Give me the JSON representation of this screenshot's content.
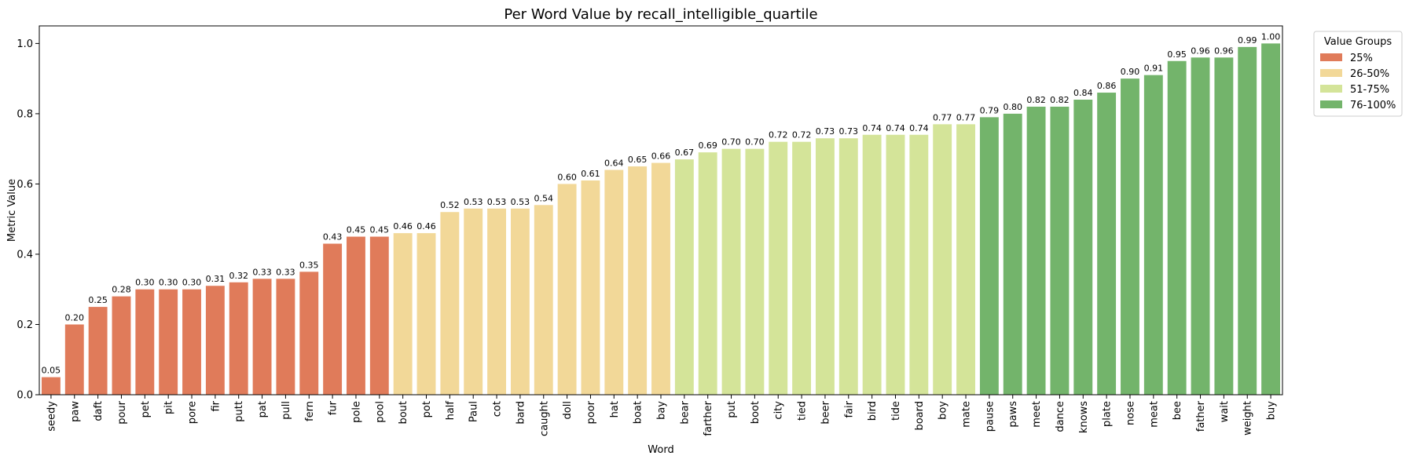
{
  "chart_data": {
    "type": "bar",
    "title": "Per Word Value by recall_intelligible_quartile",
    "xlabel": "Word",
    "ylabel": "Metric Value",
    "ylim": [
      0,
      1.05
    ],
    "yticks": [
      0.0,
      0.2,
      0.4,
      0.6,
      0.8,
      1.0
    ],
    "ytick_labels": [
      "0.0",
      "0.2",
      "0.4",
      "0.6",
      "0.8",
      "1.0"
    ],
    "grid": false,
    "legend": {
      "title": "Value Groups",
      "placement": "outside-top-right",
      "entries": [
        {
          "label": "25%",
          "color": "#e07b5a"
        },
        {
          "label": "26-50%",
          "color": "#f2d898"
        },
        {
          "label": "51-75%",
          "color": "#d4e499"
        },
        {
          "label": "76-100%",
          "color": "#73b46b"
        }
      ]
    },
    "categories": [
      "seedy",
      "paw",
      "daft",
      "pour",
      "pet",
      "pit",
      "pore",
      "fir",
      "putt",
      "pat",
      "pull",
      "fern",
      "fur",
      "pole",
      "pool",
      "bout",
      "pot",
      "half",
      "Paul",
      "cot",
      "bard",
      "caught",
      "doll",
      "poor",
      "hat",
      "boat",
      "bay",
      "bear",
      "farther",
      "put",
      "boot",
      "city",
      "tied",
      "beer",
      "fair",
      "bird",
      "tide",
      "board",
      "boy",
      "mate",
      "pause",
      "paws",
      "meet",
      "dance",
      "knows",
      "plate",
      "nose",
      "meat",
      "bee",
      "father",
      "wait",
      "weight",
      "buy"
    ],
    "values": [
      0.05,
      0.2,
      0.25,
      0.28,
      0.3,
      0.3,
      0.3,
      0.31,
      0.32,
      0.33,
      0.33,
      0.35,
      0.43,
      0.45,
      0.45,
      0.46,
      0.46,
      0.52,
      0.53,
      0.53,
      0.53,
      0.54,
      0.6,
      0.61,
      0.64,
      0.65,
      0.66,
      0.67,
      0.69,
      0.7,
      0.7,
      0.72,
      0.72,
      0.73,
      0.73,
      0.74,
      0.74,
      0.74,
      0.77,
      0.77,
      0.79,
      0.8,
      0.82,
      0.82,
      0.84,
      0.86,
      0.9,
      0.91,
      0.95,
      0.96,
      0.96,
      0.99,
      1.0
    ],
    "value_labels": [
      "0.05",
      "0.20",
      "0.25",
      "0.28",
      "0.30",
      "0.30",
      "0.30",
      "0.31",
      "0.32",
      "0.33",
      "0.33",
      "0.35",
      "0.43",
      "0.45",
      "0.45",
      "0.46",
      "0.46",
      "0.52",
      "0.53",
      "0.53",
      "0.53",
      "0.54",
      "0.60",
      "0.61",
      "0.64",
      "0.65",
      "0.66",
      "0.67",
      "0.69",
      "0.70",
      "0.70",
      "0.72",
      "0.72",
      "0.73",
      "0.73",
      "0.74",
      "0.74",
      "0.74",
      "0.77",
      "0.77",
      "0.79",
      "0.80",
      "0.82",
      "0.82",
      "0.84",
      "0.86",
      "0.90",
      "0.91",
      "0.95",
      "0.96",
      "0.96",
      "0.99",
      "1.00"
    ],
    "groups": [
      0,
      0,
      0,
      0,
      0,
      0,
      0,
      0,
      0,
      0,
      0,
      0,
      0,
      0,
      0,
      1,
      1,
      1,
      1,
      1,
      1,
      1,
      1,
      1,
      1,
      1,
      1,
      2,
      2,
      2,
      2,
      2,
      2,
      2,
      2,
      2,
      2,
      2,
      2,
      2,
      3,
      3,
      3,
      3,
      3,
      3,
      3,
      3,
      3,
      3,
      3,
      3,
      3
    ]
  }
}
